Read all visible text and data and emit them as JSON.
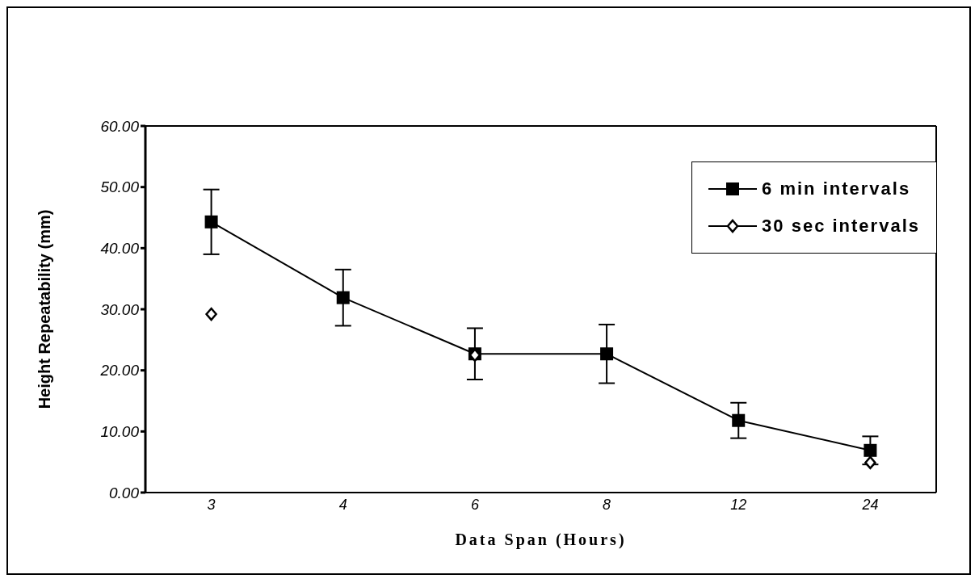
{
  "chart_data": {
    "type": "line",
    "xlabel": "Data Span (Hours)",
    "ylabel": "Height Repeatability (mm)",
    "categories": [
      "3",
      "4",
      "6",
      "8",
      "12",
      "24"
    ],
    "series": [
      {
        "name": "6 min intervals",
        "color": "#000000",
        "marker": "square",
        "values": [
          44.3,
          31.9,
          22.7,
          22.7,
          11.8,
          6.9
        ],
        "errors": [
          5.3,
          4.6,
          4.2,
          4.8,
          2.9,
          2.3
        ]
      },
      {
        "name": "30 sec intervals",
        "color": "#000000",
        "marker": "diamond",
        "values": [
          29.2,
          null,
          22.5,
          null,
          null,
          4.9
        ]
      }
    ],
    "ylim": [
      0,
      60
    ],
    "yticks": [
      {
        "value": 0,
        "label": "0.00"
      },
      {
        "value": 10,
        "label": "10.00"
      },
      {
        "value": 20,
        "label": "20.00"
      },
      {
        "value": 30,
        "label": "30.00"
      },
      {
        "value": 40,
        "label": "40.00"
      },
      {
        "value": 50,
        "label": "50.00"
      },
      {
        "value": 60,
        "label": "60.00"
      }
    ],
    "grid": false,
    "legend": "top right",
    "line_style": "solid"
  }
}
